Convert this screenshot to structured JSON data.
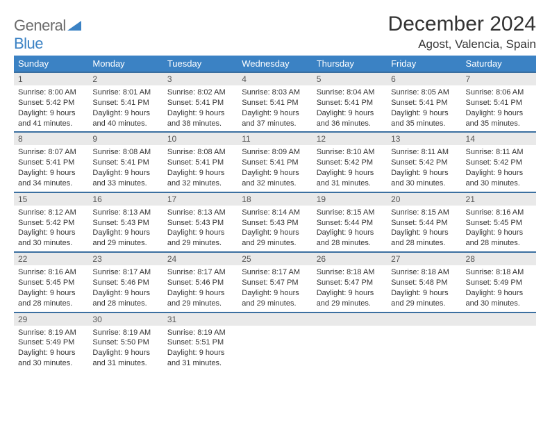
{
  "logo": {
    "general": "General",
    "blue": "Blue"
  },
  "title": "December 2024",
  "location": "Agost, Valencia, Spain",
  "colors": {
    "header_bg": "#3b82c4",
    "header_text": "#ffffff",
    "row_border": "#3b6fa0",
    "daynum_bg": "#e9e9e9",
    "body_text": "#333333",
    "logo_gray": "#6b6b6b",
    "logo_blue": "#3b82c4"
  },
  "day_headers": [
    "Sunday",
    "Monday",
    "Tuesday",
    "Wednesday",
    "Thursday",
    "Friday",
    "Saturday"
  ],
  "weeks": [
    [
      {
        "n": "1",
        "sr": "8:00 AM",
        "ss": "5:42 PM",
        "dl": "9 hours and 41 minutes."
      },
      {
        "n": "2",
        "sr": "8:01 AM",
        "ss": "5:41 PM",
        "dl": "9 hours and 40 minutes."
      },
      {
        "n": "3",
        "sr": "8:02 AM",
        "ss": "5:41 PM",
        "dl": "9 hours and 38 minutes."
      },
      {
        "n": "4",
        "sr": "8:03 AM",
        "ss": "5:41 PM",
        "dl": "9 hours and 37 minutes."
      },
      {
        "n": "5",
        "sr": "8:04 AM",
        "ss": "5:41 PM",
        "dl": "9 hours and 36 minutes."
      },
      {
        "n": "6",
        "sr": "8:05 AM",
        "ss": "5:41 PM",
        "dl": "9 hours and 35 minutes."
      },
      {
        "n": "7",
        "sr": "8:06 AM",
        "ss": "5:41 PM",
        "dl": "9 hours and 35 minutes."
      }
    ],
    [
      {
        "n": "8",
        "sr": "8:07 AM",
        "ss": "5:41 PM",
        "dl": "9 hours and 34 minutes."
      },
      {
        "n": "9",
        "sr": "8:08 AM",
        "ss": "5:41 PM",
        "dl": "9 hours and 33 minutes."
      },
      {
        "n": "10",
        "sr": "8:08 AM",
        "ss": "5:41 PM",
        "dl": "9 hours and 32 minutes."
      },
      {
        "n": "11",
        "sr": "8:09 AM",
        "ss": "5:41 PM",
        "dl": "9 hours and 32 minutes."
      },
      {
        "n": "12",
        "sr": "8:10 AM",
        "ss": "5:42 PM",
        "dl": "9 hours and 31 minutes."
      },
      {
        "n": "13",
        "sr": "8:11 AM",
        "ss": "5:42 PM",
        "dl": "9 hours and 30 minutes."
      },
      {
        "n": "14",
        "sr": "8:11 AM",
        "ss": "5:42 PM",
        "dl": "9 hours and 30 minutes."
      }
    ],
    [
      {
        "n": "15",
        "sr": "8:12 AM",
        "ss": "5:42 PM",
        "dl": "9 hours and 30 minutes."
      },
      {
        "n": "16",
        "sr": "8:13 AM",
        "ss": "5:43 PM",
        "dl": "9 hours and 29 minutes."
      },
      {
        "n": "17",
        "sr": "8:13 AM",
        "ss": "5:43 PM",
        "dl": "9 hours and 29 minutes."
      },
      {
        "n": "18",
        "sr": "8:14 AM",
        "ss": "5:43 PM",
        "dl": "9 hours and 29 minutes."
      },
      {
        "n": "19",
        "sr": "8:15 AM",
        "ss": "5:44 PM",
        "dl": "9 hours and 28 minutes."
      },
      {
        "n": "20",
        "sr": "8:15 AM",
        "ss": "5:44 PM",
        "dl": "9 hours and 28 minutes."
      },
      {
        "n": "21",
        "sr": "8:16 AM",
        "ss": "5:45 PM",
        "dl": "9 hours and 28 minutes."
      }
    ],
    [
      {
        "n": "22",
        "sr": "8:16 AM",
        "ss": "5:45 PM",
        "dl": "9 hours and 28 minutes."
      },
      {
        "n": "23",
        "sr": "8:17 AM",
        "ss": "5:46 PM",
        "dl": "9 hours and 28 minutes."
      },
      {
        "n": "24",
        "sr": "8:17 AM",
        "ss": "5:46 PM",
        "dl": "9 hours and 29 minutes."
      },
      {
        "n": "25",
        "sr": "8:17 AM",
        "ss": "5:47 PM",
        "dl": "9 hours and 29 minutes."
      },
      {
        "n": "26",
        "sr": "8:18 AM",
        "ss": "5:47 PM",
        "dl": "9 hours and 29 minutes."
      },
      {
        "n": "27",
        "sr": "8:18 AM",
        "ss": "5:48 PM",
        "dl": "9 hours and 29 minutes."
      },
      {
        "n": "28",
        "sr": "8:18 AM",
        "ss": "5:49 PM",
        "dl": "9 hours and 30 minutes."
      }
    ],
    [
      {
        "n": "29",
        "sr": "8:19 AM",
        "ss": "5:49 PM",
        "dl": "9 hours and 30 minutes."
      },
      {
        "n": "30",
        "sr": "8:19 AM",
        "ss": "5:50 PM",
        "dl": "9 hours and 31 minutes."
      },
      {
        "n": "31",
        "sr": "8:19 AM",
        "ss": "5:51 PM",
        "dl": "9 hours and 31 minutes."
      },
      null,
      null,
      null,
      null
    ]
  ],
  "labels": {
    "sunrise": "Sunrise:",
    "sunset": "Sunset:",
    "daylight": "Daylight:"
  }
}
